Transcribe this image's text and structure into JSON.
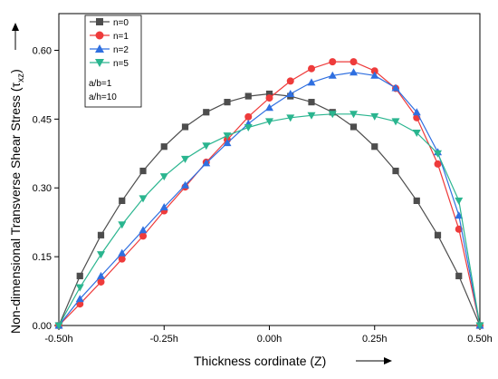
{
  "chart_data": {
    "type": "line",
    "xlabel": "Thickness cordinate (Z)",
    "ylabel_main": "Non-dimensional Transverse Shear Stress (",
    "ylabel_sym": "τ",
    "ylabel_sub": "xz",
    "ylabel_close": ")",
    "xlim": [
      -0.5,
      0.5
    ],
    "ylim": [
      0,
      0.68
    ],
    "x_ticks": [
      -0.5,
      -0.25,
      0,
      0.25,
      0.5
    ],
    "x_tick_labels": [
      "-0.50h",
      "-0.25h",
      "0.00h",
      "0.25h",
      "0.50h"
    ],
    "y_ticks": [
      0,
      0.15,
      0.3,
      0.45,
      0.6
    ],
    "y_tick_labels": [
      "0.00",
      "0.15",
      "0.30",
      "0.45",
      "0.60"
    ],
    "legend_position": "top-left",
    "notes": [
      "a/b=1",
      "a/h=10"
    ],
    "x": [
      -0.5,
      -0.45,
      -0.4,
      -0.35,
      -0.3,
      -0.25,
      -0.2,
      -0.15,
      -0.1,
      -0.05,
      0,
      0.05,
      0.1,
      0.15,
      0.2,
      0.25,
      0.3,
      0.35,
      0.4,
      0.45,
      0.5
    ],
    "series": [
      {
        "name": "n=0",
        "color": "#4d4d4d",
        "marker": "square",
        "values": [
          0,
          0.108,
          0.197,
          0.272,
          0.337,
          0.39,
          0.433,
          0.465,
          0.487,
          0.5,
          0.505,
          0.5,
          0.487,
          0.465,
          0.433,
          0.39,
          0.337,
          0.272,
          0.197,
          0.108,
          0
        ]
      },
      {
        "name": "n=1",
        "color": "#ee3b3b",
        "marker": "circle",
        "values": [
          0,
          0.047,
          0.095,
          0.145,
          0.195,
          0.25,
          0.302,
          0.356,
          0.405,
          0.455,
          0.496,
          0.533,
          0.56,
          0.575,
          0.575,
          0.555,
          0.517,
          0.453,
          0.352,
          0.21,
          0
        ]
      },
      {
        "name": "n=2",
        "color": "#2f6fe0",
        "marker": "triangle-up",
        "values": [
          0,
          0.058,
          0.108,
          0.158,
          0.208,
          0.258,
          0.306,
          0.354,
          0.398,
          0.44,
          0.475,
          0.505,
          0.53,
          0.545,
          0.552,
          0.545,
          0.518,
          0.465,
          0.378,
          0.24,
          0
        ]
      },
      {
        "name": "n=5",
        "color": "#2ab58f",
        "marker": "triangle-down",
        "values": [
          0,
          0.083,
          0.155,
          0.22,
          0.277,
          0.325,
          0.363,
          0.392,
          0.414,
          0.432,
          0.445,
          0.453,
          0.458,
          0.461,
          0.461,
          0.456,
          0.445,
          0.42,
          0.375,
          0.272,
          0
        ]
      }
    ]
  }
}
